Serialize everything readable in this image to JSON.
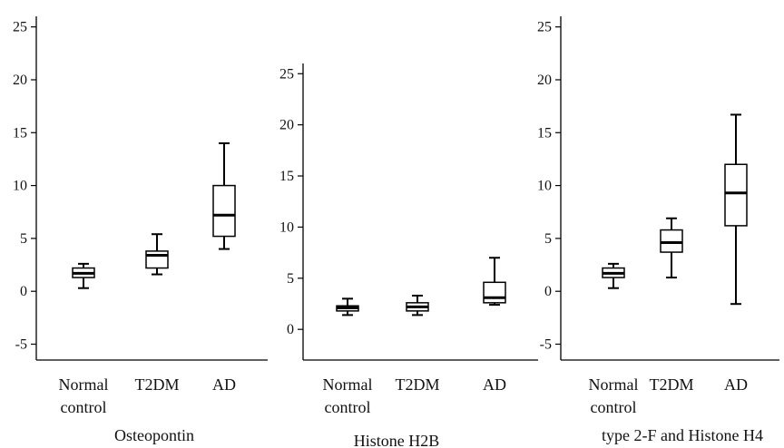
{
  "chart_data": [
    {
      "type": "box",
      "title": "Osteopontin",
      "categories": [
        "Normal control",
        "T2DM",
        "AD"
      ],
      "category_lines": [
        [
          "Normal",
          "control"
        ],
        [
          "T2DM"
        ],
        [
          "AD"
        ]
      ],
      "ylim": [
        -6.5,
        26
      ],
      "yticks": [
        -5,
        0,
        5,
        10,
        15,
        20,
        25
      ],
      "grid": false,
      "boxes": [
        {
          "min": 0.3,
          "q1": 1.3,
          "median": 1.7,
          "q3": 2.2,
          "max": 2.6
        },
        {
          "min": 1.6,
          "q1": 2.2,
          "median": 3.4,
          "q3": 3.8,
          "max": 5.4
        },
        {
          "min": 4.0,
          "q1": 5.2,
          "median": 7.2,
          "q3": 10.0,
          "max": 14.0
        }
      ]
    },
    {
      "type": "box",
      "title": "Histone H2B",
      "categories": [
        "Normal control",
        "T2DM",
        "AD"
      ],
      "category_lines": [
        [
          "Normal",
          "control"
        ],
        [
          "T2DM"
        ],
        [
          "AD"
        ]
      ],
      "ylim": [
        -3,
        26
      ],
      "yticks": [
        0,
        5,
        10,
        15,
        20,
        25
      ],
      "grid": false,
      "boxes": [
        {
          "min": 1.4,
          "q1": 1.8,
          "median": 2.1,
          "q3": 2.3,
          "max": 3.0
        },
        {
          "min": 1.4,
          "q1": 1.8,
          "median": 2.2,
          "q3": 2.6,
          "max": 3.3
        },
        {
          "min": 2.4,
          "q1": 2.6,
          "median": 3.1,
          "q3": 4.6,
          "max": 7.0
        }
      ]
    },
    {
      "type": "box",
      "title": "type 2-F and Histone H4",
      "categories": [
        "Normal control",
        "T2DM",
        "AD"
      ],
      "category_lines": [
        [
          "Normal",
          "control"
        ],
        [
          "T2DM"
        ],
        [
          "AD"
        ]
      ],
      "ylim": [
        -6.5,
        26
      ],
      "yticks": [
        -5,
        0,
        5,
        10,
        15,
        20,
        25
      ],
      "grid": false,
      "boxes": [
        {
          "min": 0.3,
          "q1": 1.3,
          "median": 1.7,
          "q3": 2.2,
          "max": 2.6
        },
        {
          "min": 1.3,
          "q1": 3.7,
          "median": 4.6,
          "q3": 5.8,
          "max": 6.9
        },
        {
          "min": -1.2,
          "q1": 6.2,
          "median": 9.3,
          "q3": 12.0,
          "max": 16.7
        }
      ]
    }
  ]
}
